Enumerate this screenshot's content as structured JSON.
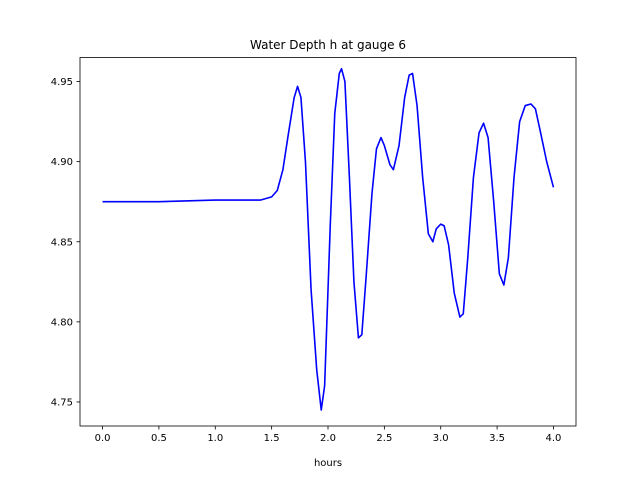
{
  "chart_data": {
    "type": "line",
    "title": "Water Depth h at gauge 6",
    "xlabel": "hours",
    "ylabel": "",
    "xlim": [
      -0.2,
      4.2
    ],
    "ylim": [
      4.735,
      4.965
    ],
    "xticks": [
      0.0,
      0.5,
      1.0,
      1.5,
      2.0,
      2.5,
      3.0,
      3.5,
      4.0
    ],
    "xtick_labels": [
      "0.0",
      "0.5",
      "1.0",
      "1.5",
      "2.0",
      "2.5",
      "3.0",
      "3.5",
      "4.0"
    ],
    "yticks": [
      4.75,
      4.8,
      4.85,
      4.9,
      4.95
    ],
    "ytick_labels": [
      "4.75",
      "4.80",
      "4.85",
      "4.90",
      "4.95"
    ],
    "grid": false,
    "series": [
      {
        "color": "#0000ff",
        "x": [
          0.0,
          0.5,
          1.0,
          1.2,
          1.4,
          1.5,
          1.55,
          1.6,
          1.65,
          1.7,
          1.73,
          1.76,
          1.8,
          1.85,
          1.9,
          1.94,
          1.97,
          2.02,
          2.06,
          2.1,
          2.12,
          2.15,
          2.19,
          2.23,
          2.27,
          2.3,
          2.34,
          2.39,
          2.43,
          2.47,
          2.5,
          2.55,
          2.58,
          2.63,
          2.68,
          2.72,
          2.75,
          2.79,
          2.84,
          2.89,
          2.93,
          2.96,
          3.0,
          3.03,
          3.07,
          3.12,
          3.17,
          3.2,
          3.24,
          3.29,
          3.34,
          3.38,
          3.42,
          3.47,
          3.52,
          3.56,
          3.6,
          3.65,
          3.7,
          3.75,
          3.8,
          3.84,
          3.88,
          3.94,
          4.0
        ],
        "y": [
          4.875,
          4.875,
          4.876,
          4.876,
          4.876,
          4.878,
          4.882,
          4.895,
          4.918,
          4.94,
          4.947,
          4.94,
          4.9,
          4.82,
          4.77,
          4.745,
          4.76,
          4.86,
          4.93,
          4.955,
          4.958,
          4.95,
          4.89,
          4.825,
          4.79,
          4.792,
          4.83,
          4.88,
          4.908,
          4.915,
          4.91,
          4.898,
          4.895,
          4.91,
          4.94,
          4.954,
          4.955,
          4.935,
          4.89,
          4.855,
          4.85,
          4.858,
          4.861,
          4.86,
          4.848,
          4.818,
          4.803,
          4.805,
          4.84,
          4.89,
          4.918,
          4.924,
          4.915,
          4.875,
          4.83,
          4.823,
          4.84,
          4.89,
          4.925,
          4.935,
          4.936,
          4.933,
          4.92,
          4.9,
          4.884
        ]
      }
    ]
  }
}
